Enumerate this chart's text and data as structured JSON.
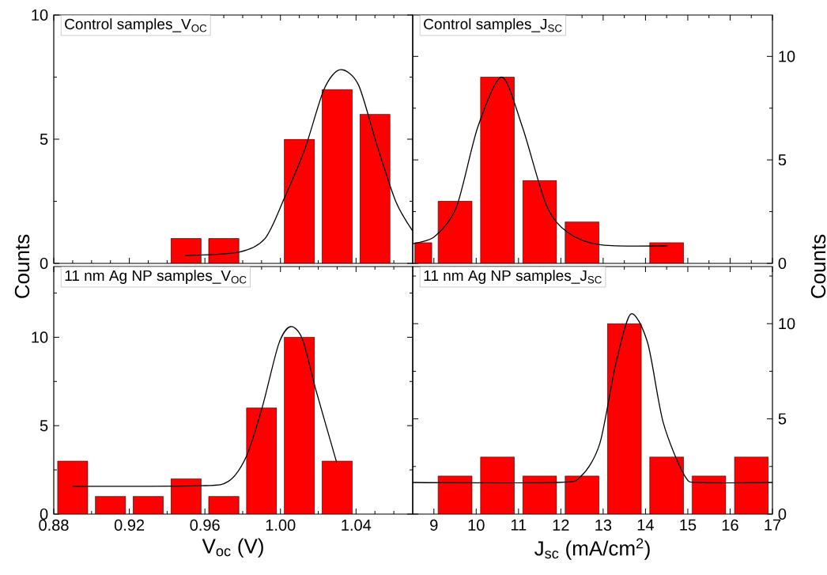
{
  "chart_data": [
    {
      "type": "histogram",
      "title": "Control samples_V$_{OC}$",
      "xlim": [
        0.88,
        1.07
      ],
      "ylim": [
        0,
        10
      ],
      "tick_labels": "y",
      "xticks": [
        0.88,
        {
          "value": 0.89,
          "label": null
        },
        {
          "value": 0.9,
          "label": null
        },
        {
          "value": 0.91,
          "label": null
        },
        0.92,
        {
          "value": 0.93,
          "label": null
        },
        {
          "value": 0.94,
          "label": null
        },
        {
          "value": 0.95,
          "label": null
        },
        0.96,
        {
          "value": 0.97,
          "label": null
        },
        {
          "value": 0.98,
          "label": null
        },
        {
          "value": 0.99,
          "label": null
        },
        1.0,
        {
          "value": 1.01,
          "label": null
        },
        {
          "value": 1.02,
          "label": null
        },
        {
          "value": 1.03,
          "label": null
        },
        1.04,
        {
          "value": 1.05,
          "label": null
        },
        {
          "value": 1.06,
          "label": null
        }
      ],
      "yticks": [
        0,
        {
          "value": 2.5,
          "label": null
        },
        5,
        {
          "value": 7.5,
          "label": null
        },
        10
      ],
      "series": [
        {
          "type": "histogram",
          "color": "#ff0000",
          "bins": [
            0.88,
            0.9,
            0.92,
            0.94,
            0.96,
            0.98,
            1.0,
            1.02,
            1.04,
            1.06
          ],
          "values": [
            0,
            0,
            0,
            1,
            1,
            0,
            5,
            7,
            6
          ]
        },
        {
          "type": "line",
          "color": "#000000",
          "x": [
            0.9496,
            0.9779,
            0.9918,
            1.0019,
            1.0129,
            1.023,
            1.0315,
            1.0412,
            1.0509,
            1.061,
            1.07
          ],
          "values": [
            0.32,
            0.45,
            1.0,
            2.6,
            4.6,
            7.0,
            7.8,
            7.2,
            4.8,
            2.5,
            1.3
          ]
        }
      ]
    },
    {
      "type": "histogram",
      "title": "Control samples_J$_{SC}$",
      "xlim": [
        8.5,
        17
      ],
      "ylim": [
        0,
        12
      ],
      "tick_labels": "y",
      "xticks": [
        9,
        {
          "value": 9.5,
          "label": null
        },
        10,
        {
          "value": 10.5,
          "label": null
        },
        11,
        {
          "value": 11.5,
          "label": null
        },
        12,
        {
          "value": 12.5,
          "label": null
        },
        13,
        {
          "value": 13.5,
          "label": null
        },
        14,
        {
          "value": 14.5,
          "label": null
        },
        15,
        {
          "value": 15.5,
          "label": null
        },
        16,
        {
          "value": 16.5,
          "label": null
        },
        17
      ],
      "yticks": [
        0,
        {
          "value": 2.5,
          "label": null
        },
        5,
        {
          "value": 7.5,
          "label": null
        },
        10
      ],
      "series": [
        {
          "type": "histogram",
          "color": "#ff0000",
          "bins": [
            8.5,
            9,
            10,
            11,
            12,
            13,
            14,
            15
          ],
          "values": [
            1,
            3,
            9,
            4,
            2,
            0,
            1
          ]
        },
        {
          "type": "line",
          "color": "#000000",
          "x": [
            8.5,
            9.02,
            9.53,
            10.04,
            10.6,
            11.09,
            11.66,
            12.16,
            12.92,
            14.52
          ],
          "values": [
            0.95,
            1.3,
            2.7,
            6.6,
            9.0,
            6.6,
            2.8,
            1.5,
            0.9,
            0.85
          ]
        }
      ]
    },
    {
      "type": "histogram",
      "title": "11 nm Ag NP samples_V$_{OC}$",
      "xlabel": "V$_{oc}$ (V)",
      "ylabel": "Counts",
      "xlim": [
        0.88,
        1.07
      ],
      "ylim": [
        0,
        14
      ],
      "xticks": [
        0.88,
        {
          "value": 0.89,
          "label": null
        },
        {
          "value": 0.9,
          "label": null
        },
        {
          "value": 0.91,
          "label": null
        },
        0.92,
        {
          "value": 0.93,
          "label": null
        },
        {
          "value": 0.94,
          "label": null
        },
        {
          "value": 0.95,
          "label": null
        },
        0.96,
        {
          "value": 0.97,
          "label": null
        },
        {
          "value": 0.98,
          "label": null
        },
        {
          "value": 0.99,
          "label": null
        },
        {
          "value": 1.0,
          "label": "1.00"
        },
        {
          "value": 1.01,
          "label": null
        },
        {
          "value": 1.02,
          "label": null
        },
        {
          "value": 1.03,
          "label": null
        },
        1.04,
        {
          "value": 1.05,
          "label": null
        },
        {
          "value": 1.06,
          "label": null
        }
      ],
      "yticks": [
        0,
        {
          "value": 2.5,
          "label": null
        },
        5,
        {
          "value": 7.5,
          "label": null
        },
        10,
        {
          "value": 12.5,
          "label": null
        }
      ],
      "series": [
        {
          "type": "histogram",
          "color": "#ff0000",
          "bins": [
            0.88,
            0.9,
            0.92,
            0.94,
            0.96,
            0.98,
            1.0,
            1.02,
            1.04
          ],
          "values": [
            3,
            1,
            1,
            2,
            1,
            6,
            10,
            3
          ]
        },
        {
          "type": "line",
          "color": "#000000",
          "x": [
            0.8901,
            0.9568,
            0.9724,
            0.9821,
            0.9905,
            0.999,
            1.0053,
            1.0116,
            1.0188,
            1.0298
          ],
          "values": [
            1.57,
            1.6,
            1.85,
            3.3,
            6.1,
            9.6,
            10.6,
            9.9,
            7.0,
            2.9
          ]
        }
      ]
    },
    {
      "type": "histogram",
      "title": "11 nm Ag NP samples_J$_{SC}$",
      "xlabel": "J$_{sc}$ (mA/cm$^{2}$)",
      "ylabel": "Counts",
      "xlim": [
        8.5,
        17
      ],
      "ylim": [
        0,
        13
      ],
      "xticks": [
        9,
        {
          "value": 9.5,
          "label": null
        },
        10,
        {
          "value": 10.5,
          "label": null
        },
        11,
        {
          "value": 11.5,
          "label": null
        },
        12,
        {
          "value": 12.5,
          "label": null
        },
        13,
        {
          "value": 13.5,
          "label": null
        },
        14,
        {
          "value": 14.5,
          "label": null
        },
        15,
        {
          "value": 15.5,
          "label": null
        },
        16,
        {
          "value": 16.5,
          "label": null
        },
        17
      ],
      "yticks": [
        0,
        {
          "value": 2.5,
          "label": null
        },
        5,
        {
          "value": 7.5,
          "label": null
        },
        10,
        {
          "value": 12.5,
          "label": null
        }
      ],
      "series": [
        {
          "type": "histogram",
          "color": "#ff0000",
          "bins": [
            9,
            10,
            11,
            12,
            13,
            14,
            15,
            16,
            17
          ],
          "values": [
            2,
            3,
            2,
            2,
            10,
            3,
            2,
            3
          ]
        },
        {
          "type": "line",
          "color": "#000000",
          "x": [
            8.5,
            11.92,
            12.48,
            12.92,
            13.29,
            13.65,
            14.05,
            14.42,
            14.93,
            15.31,
            17.0
          ],
          "values": [
            1.66,
            1.66,
            2.0,
            3.7,
            7.8,
            10.5,
            9.0,
            4.8,
            2.0,
            1.66,
            1.66
          ]
        }
      ]
    }
  ]
}
